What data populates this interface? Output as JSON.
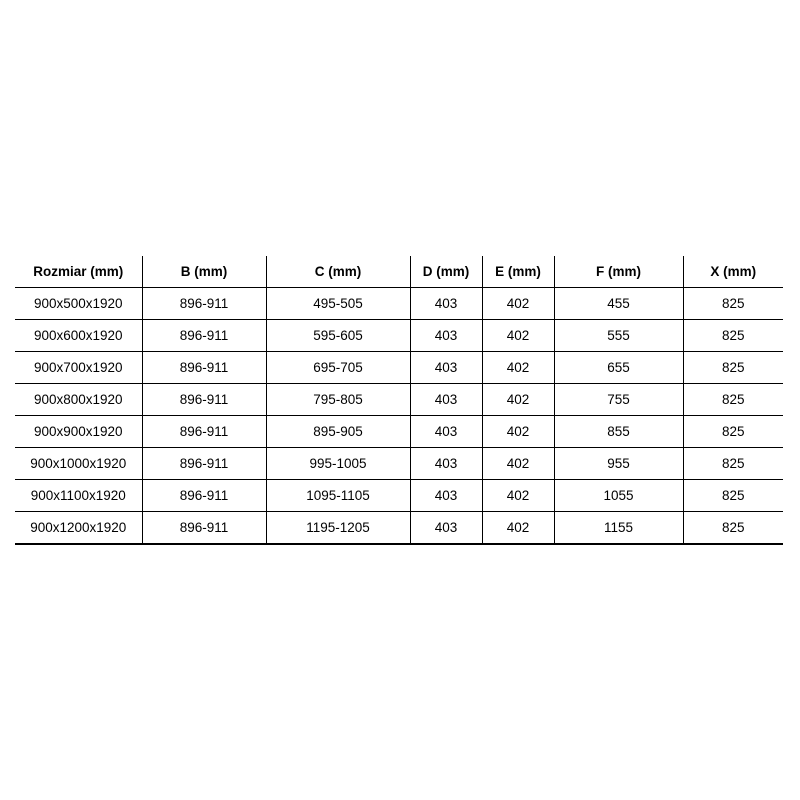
{
  "table": {
    "headers": [
      "Rozmiar (mm)",
      "B (mm)",
      "C (mm)",
      "D (mm)",
      "E (mm)",
      "F (mm)",
      "X (mm)"
    ],
    "rows": [
      [
        "900x500x1920",
        "896-911",
        "495-505",
        "403",
        "402",
        "455",
        "825"
      ],
      [
        "900x600x1920",
        "896-911",
        "595-605",
        "403",
        "402",
        "555",
        "825"
      ],
      [
        "900x700x1920",
        "896-911",
        "695-705",
        "403",
        "402",
        "655",
        "825"
      ],
      [
        "900x800x1920",
        "896-911",
        "795-805",
        "403",
        "402",
        "755",
        "825"
      ],
      [
        "900x900x1920",
        "896-911",
        "895-905",
        "403",
        "402",
        "855",
        "825"
      ],
      [
        "900x1000x1920",
        "896-911",
        "995-1005",
        "403",
        "402",
        "955",
        "825"
      ],
      [
        "900x1100x1920",
        "896-911",
        "1095-1105",
        "403",
        "402",
        "1055",
        "825"
      ],
      [
        "900x1200x1920",
        "896-911",
        "1195-1205",
        "403",
        "402",
        "1155",
        "825"
      ]
    ]
  }
}
